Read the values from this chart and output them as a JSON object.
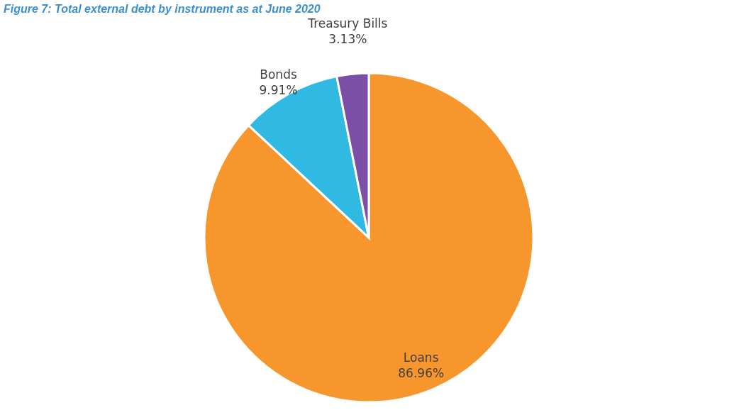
{
  "chart_data": {
    "type": "pie",
    "title": "Figure 7: Total external debt by instrument as at June 2020",
    "categories": [
      "Loans",
      "Bonds",
      "Treasury Bills"
    ],
    "values": [
      86.96,
      9.91,
      3.13
    ],
    "colors": [
      "#f7962c",
      "#2fb9e3",
      "#7c4fa6"
    ],
    "value_labels": [
      "86.96%",
      "9.91%",
      "3.13%"
    ],
    "legend": false
  }
}
